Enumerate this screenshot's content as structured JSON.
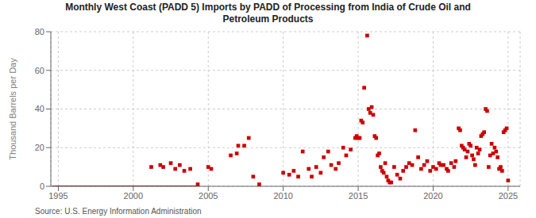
{
  "chart_data": {
    "type": "scatter",
    "title": "Monthly West Coast (PADD 5) Imports by PADD of Processing from India of Crude Oil and\nPetroleum Products",
    "ylabel": "Thousand Barrels per Day",
    "annotations": [
      "Source: U.S. Energy Information Administration"
    ],
    "xlim": [
      1994.5,
      2025.8
    ],
    "xticks": [
      1995,
      2000,
      2005,
      2010,
      2015,
      2020,
      2025
    ],
    "ylim": [
      0,
      80
    ],
    "yticks": [
      0,
      20,
      40,
      60,
      80
    ],
    "grid": true,
    "series": [
      {
        "type": "line",
        "color": "#8b0000",
        "x": [
          1994.6,
          2004.3
        ],
        "values": [
          0,
          0
        ]
      },
      {
        "type": "scatter",
        "color": "#cc0000",
        "marker": "square",
        "x": [
          2001.2,
          2001.8,
          2002.0,
          2002.5,
          2002.8,
          2003.1,
          2003.4,
          2003.8,
          2004.3,
          2005.0,
          2005.2,
          2006.5,
          2006.9,
          2007.0,
          2007.4,
          2007.7,
          2008.0,
          2008.4,
          2010.0,
          2010.4,
          2010.7,
          2011.0,
          2011.3,
          2011.7,
          2011.9,
          2012.2,
          2012.5,
          2012.7,
          2013.0,
          2013.2,
          2013.5,
          2013.7,
          2014.0,
          2014.2,
          2014.5,
          2014.8,
          2014.9,
          2015.0,
          2015.1,
          2015.2,
          2015.3,
          2015.4,
          2015.6,
          2015.7,
          2015.8,
          2015.9,
          2016.0,
          2016.1,
          2016.2,
          2016.3,
          2016.4,
          2016.5,
          2016.6,
          2016.7,
          2016.8,
          2016.9,
          2017.0,
          2017.1,
          2017.2,
          2017.4,
          2017.6,
          2017.8,
          2018.0,
          2018.2,
          2018.4,
          2018.6,
          2018.8,
          2019.0,
          2019.2,
          2019.4,
          2019.6,
          2019.8,
          2020.0,
          2020.2,
          2020.4,
          2020.5,
          2020.7,
          2020.9,
          2021.0,
          2021.2,
          2021.4,
          2021.5,
          2021.7,
          2021.8,
          2021.9,
          2022.0,
          2022.1,
          2022.2,
          2022.3,
          2022.4,
          2022.5,
          2022.6,
          2022.7,
          2022.8,
          2022.9,
          2023.0,
          2023.1,
          2023.2,
          2023.3,
          2023.4,
          2023.5,
          2023.6,
          2023.7,
          2023.8,
          2023.9,
          2024.0,
          2024.1,
          2024.2,
          2024.3,
          2024.4,
          2024.5,
          2024.6,
          2024.7,
          2024.8,
          2024.9,
          2025.0
        ],
        "values": [
          10,
          11,
          10,
          12,
          9,
          11,
          8,
          9,
          1,
          10,
          9,
          16,
          17,
          21,
          21,
          25,
          5,
          1,
          7,
          6,
          8,
          5,
          18,
          9,
          5,
          10,
          7,
          15,
          18,
          11,
          9,
          12,
          20,
          16,
          19,
          25,
          26,
          25,
          25,
          34,
          33,
          51,
          78,
          40,
          38,
          41,
          37,
          26,
          25,
          16,
          17,
          10,
          8,
          7,
          12,
          5,
          3,
          2,
          2,
          10,
          6,
          4,
          8,
          10,
          12,
          11,
          29,
          15,
          9,
          11,
          13,
          8,
          10,
          9,
          12,
          11,
          11,
          9,
          8,
          12,
          10,
          13,
          30,
          29,
          21,
          20,
          19,
          15,
          18,
          22,
          21,
          16,
          14,
          11,
          20,
          17,
          19,
          26,
          27,
          28,
          40,
          39,
          10,
          16,
          22,
          17,
          20,
          18,
          15,
          9,
          10,
          8,
          28,
          29,
          30,
          3
        ]
      }
    ]
  }
}
